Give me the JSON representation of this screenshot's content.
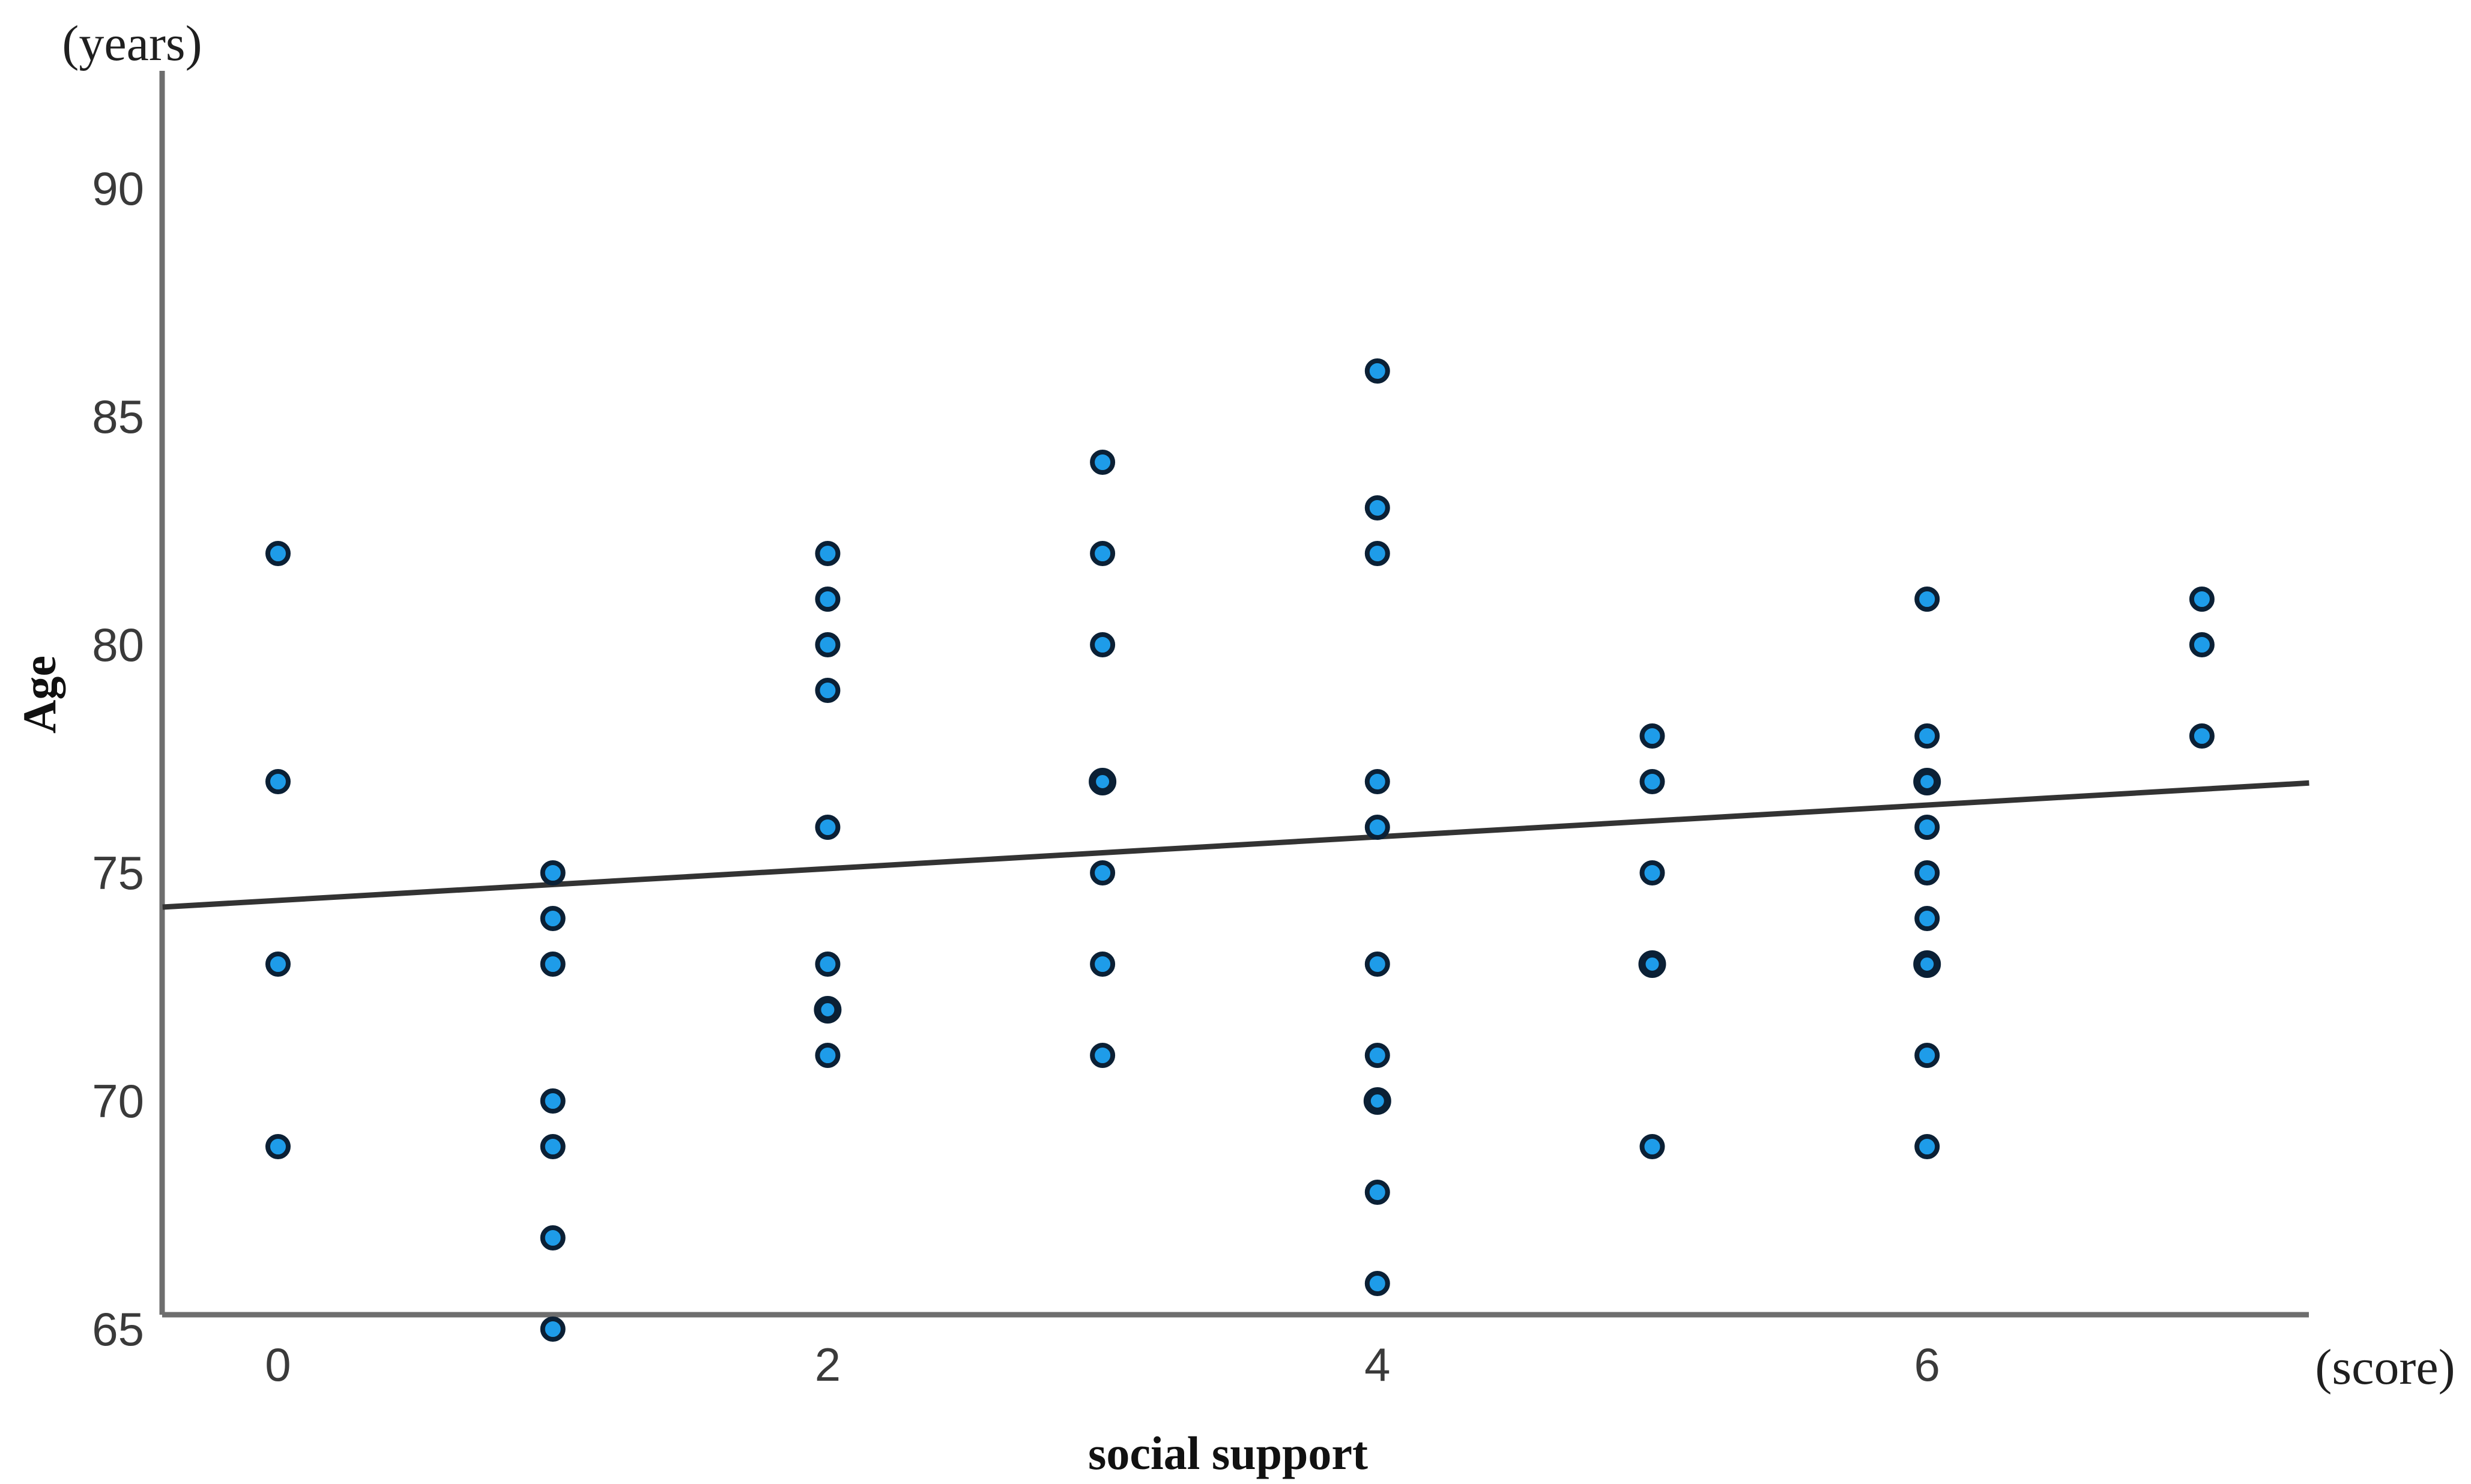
{
  "chart_data": {
    "type": "scatter",
    "title": "",
    "xlabel": "social support",
    "xlabel_unit": "(score)",
    "ylabel": "Age",
    "ylabel_unit": "(years)",
    "xlim": [
      -0.42,
      7.39
    ],
    "ylim": [
      64.5,
      92.6
    ],
    "xticks": [
      "0",
      "2",
      "4",
      "6"
    ],
    "yticks": [
      "90",
      "85",
      "80",
      "75",
      "70",
      "65"
    ],
    "grid": false,
    "legend": null,
    "colors": {
      "marker_fill": "#1e9ce9",
      "marker_stroke": "#0b2035",
      "axis": "#6e6e6e",
      "trend": "#333333"
    },
    "columns": [
      {
        "score": 0,
        "ages": [
          82,
          77,
          73,
          69
        ]
      },
      {
        "score": 1,
        "ages": [
          75,
          74,
          73,
          70,
          69,
          67,
          65
        ]
      },
      {
        "score": 2,
        "ages": [
          82,
          81,
          80,
          79,
          76,
          73,
          72,
          71
        ]
      },
      {
        "score": 3,
        "ages": [
          84,
          82,
          80,
          77,
          75,
          73,
          71
        ]
      },
      {
        "score": 4,
        "ages": [
          86,
          83,
          82,
          77,
          76,
          73,
          71,
          70,
          68,
          66
        ]
      },
      {
        "score": 5,
        "ages": [
          78,
          77,
          75,
          73,
          69
        ]
      },
      {
        "score": 6,
        "ages": [
          81,
          78,
          77,
          76,
          75,
          74,
          73,
          71,
          69
        ]
      },
      {
        "score": 7,
        "ages": [
          81,
          80,
          78
        ]
      }
    ],
    "dense_points": [
      [
        2,
        72
      ],
      [
        3,
        77
      ],
      [
        4,
        70
      ],
      [
        5,
        73
      ],
      [
        6,
        77
      ],
      [
        6,
        73
      ]
    ],
    "trend": {
      "x": [
        -0.42,
        7.39
      ],
      "y": [
        74.25,
        76.97
      ]
    }
  }
}
